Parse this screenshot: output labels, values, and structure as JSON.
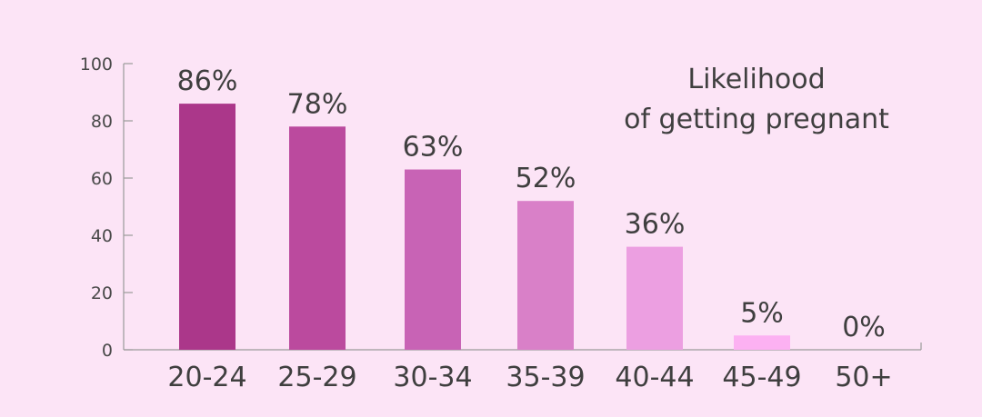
{
  "chart_data": {
    "type": "bar",
    "title_lines": [
      "Likelihood",
      "of getting pregnant"
    ],
    "categories": [
      "20-24",
      "25-29",
      "30-34",
      "35-39",
      "40-44",
      "45-49",
      "50+"
    ],
    "values": [
      86,
      78,
      63,
      52,
      36,
      5,
      0
    ],
    "data_labels": [
      "86%",
      "78%",
      "63%",
      "52%",
      "36%",
      "5%",
      "0%"
    ],
    "yticks": [
      0,
      20,
      40,
      60,
      80,
      100
    ],
    "ylim": [
      0,
      100
    ],
    "grid": false,
    "colors": [
      "#ab378a",
      "#bb4a9e",
      "#c863b5",
      "#d980c8",
      "#ec9fe1",
      "#fcb1f2",
      "#fcc4f6"
    ],
    "background": "#fce4f6"
  }
}
